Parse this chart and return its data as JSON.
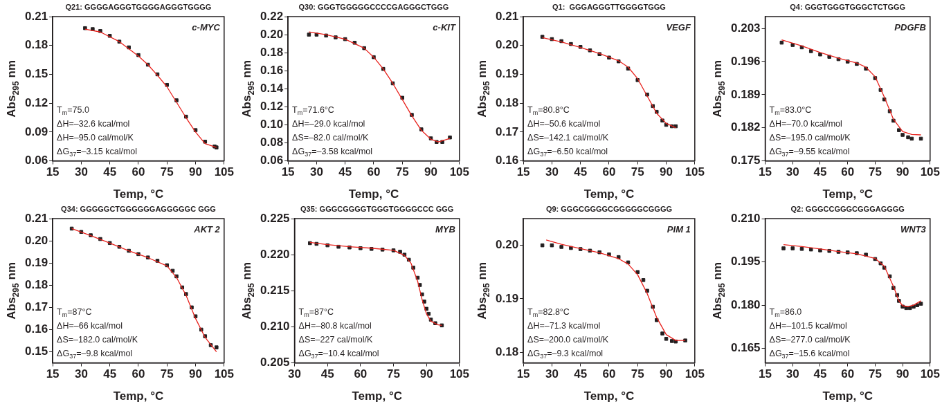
{
  "chart_data": [
    {
      "type": "scatter",
      "title": "Q21: GGGGAGGGTGGGGAGGGTGGGG",
      "xlabel": "Temp, °C",
      "ylabel": "Abs$_{295}$ nm",
      "xlim": [
        15,
        105
      ],
      "xticks": [
        15,
        30,
        45,
        60,
        75,
        90,
        105
      ],
      "ylim": [
        0.06,
        0.21
      ],
      "yticks": [
        {
          "value": 0.06,
          "label": "0.06"
        },
        {
          "value": 0.09,
          "label": "0.09"
        },
        {
          "value": 0.12,
          "label": "0.12"
        },
        {
          "value": 0.15,
          "label": "0.15"
        },
        {
          "value": 0.18,
          "label": "0.18"
        },
        {
          "value": 0.21,
          "label": "0.21"
        }
      ],
      "annotations": [
        "c-MYC",
        "T$_{m}$=75.0",
        "ΔH=–32.6 kcal/mol",
        "ΔH=–95.0 cal/mol/K",
        "ΔG$_{37}$=–3.15 kcal/mol"
      ],
      "series": [
        {
          "type": "scatter",
          "marker": "square",
          "color": "#231f20",
          "x": [
            32,
            36,
            40,
            45,
            50,
            55,
            60,
            65,
            70,
            75,
            80,
            85,
            90,
            95,
            100,
            101
          ],
          "values": [
            0.198,
            0.197,
            0.195,
            0.19,
            0.184,
            0.178,
            0.17,
            0.16,
            0.15,
            0.139,
            0.123,
            0.106,
            0.092,
            0.08,
            0.075,
            0.074
          ]
        },
        {
          "type": "line",
          "marker": "none",
          "line_style": "solid",
          "color": "#e8211c",
          "x": [
            32,
            40,
            50,
            60,
            65,
            70,
            75,
            80,
            85,
            90,
            95,
            101
          ],
          "values": [
            0.197,
            0.194,
            0.184,
            0.169,
            0.16,
            0.149,
            0.137,
            0.121,
            0.105,
            0.09,
            0.078,
            0.074
          ]
        }
      ]
    },
    {
      "type": "scatter",
      "title": "Q30: GGGTGGGGGCCCCGAGGGCTGGG",
      "xlabel": "Temp, °C",
      "ylabel": "Abs$_{295}$ nm",
      "xlim": [
        15,
        105
      ],
      "xticks": [
        15,
        30,
        45,
        60,
        75,
        90,
        105
      ],
      "ylim": [
        0.06,
        0.22
      ],
      "yticks": [
        {
          "value": 0.06,
          "label": "0.06"
        },
        {
          "value": 0.08,
          "label": "0.08"
        },
        {
          "value": 0.1,
          "label": "0.10"
        },
        {
          "value": 0.12,
          "label": "0.12"
        },
        {
          "value": 0.14,
          "label": "0.14"
        },
        {
          "value": 0.16,
          "label": "0.16"
        },
        {
          "value": 0.18,
          "label": "0.18"
        },
        {
          "value": 0.2,
          "label": "0.20"
        },
        {
          "value": 0.22,
          "label": "0.22"
        }
      ],
      "annotations": [
        "c-KIT",
        "T$_{m}$=71.6°C",
        "ΔH=–29.0 kcal/mol",
        "ΔS=–82.0 cal/mol/K",
        "ΔG$_{37}$=–3.58 kcal/mol"
      ],
      "series": [
        {
          "type": "scatter",
          "marker": "square",
          "color": "#231f20",
          "x": [
            26,
            30,
            35,
            40,
            45,
            50,
            55,
            60,
            65,
            70,
            75,
            80,
            85,
            90,
            93,
            96,
            100
          ],
          "values": [
            0.2,
            0.2,
            0.199,
            0.197,
            0.195,
            0.191,
            0.185,
            0.175,
            0.162,
            0.146,
            0.13,
            0.111,
            0.095,
            0.085,
            0.081,
            0.081,
            0.086
          ]
        },
        {
          "type": "line",
          "marker": "none",
          "line_style": "solid",
          "color": "#e8211c",
          "x": [
            26,
            35,
            45,
            55,
            60,
            65,
            70,
            75,
            80,
            85,
            90,
            94,
            100
          ],
          "values": [
            0.203,
            0.2,
            0.195,
            0.185,
            0.175,
            0.162,
            0.146,
            0.128,
            0.11,
            0.094,
            0.084,
            0.081,
            0.085
          ]
        }
      ]
    },
    {
      "type": "scatter",
      "title": "Q1:  GGGAGGGTTGGGGTGGG",
      "xlabel": "Temp, °C",
      "ylabel": "Abs$_{295}$ nm",
      "xlim": [
        15,
        105
      ],
      "xticks": [
        15,
        30,
        45,
        60,
        75,
        90,
        105
      ],
      "ylim": [
        0.16,
        0.21
      ],
      "yticks": [
        {
          "value": 0.16,
          "label": "0.16"
        },
        {
          "value": 0.17,
          "label": "0.17"
        },
        {
          "value": 0.18,
          "label": "0.18"
        },
        {
          "value": 0.19,
          "label": "0.19"
        },
        {
          "value": 0.2,
          "label": "0.20"
        },
        {
          "value": 0.21,
          "label": "0.21"
        }
      ],
      "annotations": [
        "VEGF",
        "T$_{m}$=80.8°C",
        "ΔH=–50.6 kcal/mol",
        "ΔS=–142.1 cal/mol/K",
        "ΔG$_{37}$=–6.50 kcal/mol"
      ],
      "series": [
        {
          "type": "scatter",
          "marker": "square",
          "color": "#231f20",
          "x": [
            25,
            30,
            35,
            40,
            45,
            50,
            55,
            60,
            65,
            70,
            75,
            80,
            83,
            85,
            88,
            90,
            93,
            95
          ],
          "values": [
            0.203,
            0.2022,
            0.2015,
            0.2005,
            0.1995,
            0.1983,
            0.197,
            0.1958,
            0.1945,
            0.192,
            0.188,
            0.183,
            0.179,
            0.177,
            0.174,
            0.1725,
            0.172,
            0.172
          ]
        },
        {
          "type": "line",
          "marker": "none",
          "line_style": "solid",
          "color": "#e8211c",
          "x": [
            25,
            35,
            45,
            55,
            65,
            70,
            75,
            80,
            85,
            90,
            95
          ],
          "values": [
            0.2027,
            0.2012,
            0.1993,
            0.1972,
            0.1947,
            0.1925,
            0.1885,
            0.1825,
            0.1765,
            0.173,
            0.1715
          ]
        }
      ]
    },
    {
      "type": "scatter",
      "title": "Q4: GGGTGGGTGGGCTCTGGG",
      "xlabel": "Temp, °C",
      "ylabel": "Abs$_{295}$ nm",
      "xlim": [
        15,
        105
      ],
      "xticks": [
        15,
        30,
        45,
        60,
        75,
        90,
        105
      ],
      "ylim": [
        0.175,
        0.2055
      ],
      "yticks": [
        0.175,
        0.182,
        0.189,
        0.196,
        0.203
      ],
      "annotations": [
        "PDGFB",
        "T$_{m}$=83.0°C",
        "ΔH=–70.0 kcal/mol",
        "ΔS=–195.0 cal/mol/K",
        "ΔG$_{37}$=–9.55 kcal/mol"
      ],
      "series": [
        {
          "type": "scatter",
          "marker": "square",
          "color": "#231f20",
          "x": [
            24,
            30,
            35,
            40,
            45,
            50,
            55,
            60,
            65,
            70,
            75,
            78,
            80,
            83,
            85,
            88,
            90,
            93,
            95,
            100
          ],
          "values": [
            0.2,
            0.1995,
            0.199,
            0.1982,
            0.1975,
            0.197,
            0.1965,
            0.196,
            0.1955,
            0.1945,
            0.1925,
            0.19,
            0.188,
            0.1855,
            0.1835,
            0.1815,
            0.1805,
            0.18,
            0.1797,
            0.1797
          ]
        },
        {
          "type": "line",
          "marker": "none",
          "line_style": "solid",
          "color": "#e8211c",
          "x": [
            24,
            35,
            45,
            55,
            65,
            70,
            75,
            80,
            85,
            90,
            95,
            100
          ],
          "values": [
            0.2006,
            0.1993,
            0.1979,
            0.1967,
            0.1957,
            0.1948,
            0.1928,
            0.1885,
            0.1838,
            0.1812,
            0.1806,
            0.1805
          ]
        }
      ]
    },
    {
      "type": "scatter",
      "title": "Q34: GGGGGCTGGGGGGAGGGGGC GGG",
      "xlabel": "Temp, °C",
      "ylabel": "Abs$_{295}$ nm",
      "xlim": [
        15,
        105
      ],
      "xticks": [
        15,
        30,
        45,
        60,
        75,
        90,
        105
      ],
      "ylim": [
        0.145,
        0.21
      ],
      "yticks": [
        0.15,
        0.16,
        0.17,
        0.18,
        0.19,
        {
          "value": 0.2,
          "label": "0.20"
        },
        0.21
      ],
      "annotations": [
        "AKT 2",
        "T$_{m}$=87°C",
        "ΔH=–66 kcal/mol",
        "ΔS=–182.0 cal/mol/K",
        "ΔG$_{37}$=–9.8 kcal/mol"
      ],
      "series": [
        {
          "type": "scatter",
          "marker": "square",
          "color": "#231f20",
          "x": [
            25,
            30,
            35,
            40,
            45,
            50,
            55,
            60,
            65,
            70,
            75,
            78,
            80,
            83,
            85,
            88,
            90,
            93,
            95,
            98,
            101
          ],
          "values": [
            0.2055,
            0.204,
            0.2025,
            0.2008,
            0.199,
            0.1973,
            0.1955,
            0.194,
            0.1925,
            0.191,
            0.189,
            0.1865,
            0.184,
            0.179,
            0.176,
            0.17,
            0.166,
            0.16,
            0.157,
            0.153,
            0.152
          ]
        },
        {
          "type": "line",
          "marker": "none",
          "line_style": "solid",
          "color": "#e8211c",
          "x": [
            25,
            35,
            45,
            55,
            65,
            75,
            80,
            85,
            90,
            95,
            101
          ],
          "values": [
            0.2055,
            0.2023,
            0.199,
            0.1955,
            0.1924,
            0.1887,
            0.1835,
            0.1755,
            0.165,
            0.1565,
            0.15
          ]
        }
      ]
    },
    {
      "type": "scatter",
      "title": "Q35: GGGCGGGGTGGGTGGGGCCC GGG",
      "xlabel": "Temp, °C",
      "ylabel": "Abs$_{295}$ nm",
      "xlim": [
        30,
        105
      ],
      "xticks": [
        30,
        45,
        60,
        75,
        90,
        105
      ],
      "ylim": [
        0.205,
        0.225
      ],
      "yticks": [
        0.205,
        {
          "value": 0.21,
          "label": "0.210"
        },
        0.215,
        {
          "value": 0.22,
          "label": "0.220"
        },
        0.225
      ],
      "annotations": [
        "MYB",
        "T$_{m}$=87°C",
        "ΔH=–80.8 kcal/mol",
        "ΔS=–227 cal/mol/K",
        "ΔG$_{37}$=–10.4 kcal/mol"
      ],
      "series": [
        {
          "type": "scatter",
          "marker": "square",
          "color": "#231f20",
          "x": [
            37,
            40,
            45,
            50,
            55,
            60,
            65,
            70,
            75,
            78,
            80,
            82,
            84,
            86,
            87,
            88,
            89,
            90,
            91,
            92,
            94,
            97
          ],
          "values": [
            0.2216,
            0.2215,
            0.2213,
            0.2211,
            0.221,
            0.2209,
            0.2208,
            0.2207,
            0.2206,
            0.2204,
            0.22,
            0.2193,
            0.2182,
            0.2168,
            0.2158,
            0.2145,
            0.2135,
            0.2125,
            0.2118,
            0.211,
            0.2105,
            0.2102
          ]
        },
        {
          "type": "line",
          "marker": "none",
          "line_style": "solid",
          "color": "#e8211c",
          "x": [
            37,
            45,
            55,
            65,
            75,
            80,
            83,
            86,
            88,
            90,
            92,
            95,
            97
          ],
          "values": [
            0.2217,
            0.2214,
            0.2211,
            0.2209,
            0.2206,
            0.2199,
            0.2188,
            0.2163,
            0.2138,
            0.2118,
            0.2108,
            0.2103,
            0.2102
          ]
        }
      ]
    },
    {
      "type": "scatter",
      "title": "Q9: GGGCGGGGCGGGGGCGGGG",
      "xlabel": "Temp, °C",
      "ylabel": "Abs$_{295}$ nm",
      "xlim": [
        15,
        105
      ],
      "xticks": [
        15,
        30,
        45,
        60,
        75,
        90,
        105
      ],
      "ylim": [
        0.178,
        0.205
      ],
      "yticks": [
        {
          "value": 0.18,
          "label": "0.18"
        },
        {
          "value": 0.19,
          "label": "0.19"
        },
        {
          "value": 0.2,
          "label": "0.20"
        }
      ],
      "annotations": [
        "PIM 1",
        "T$_{m}$=82.8°C",
        "ΔH=–71.3 kcal/mol",
        "ΔS=–200.0 cal/mol/K",
        "ΔG$_{37}$=–9.3 kcal/mol"
      ],
      "series": [
        {
          "type": "scatter",
          "marker": "square",
          "color": "#231f20",
          "x": [
            25,
            30,
            35,
            40,
            45,
            50,
            55,
            60,
            65,
            70,
            75,
            78,
            80,
            83,
            85,
            88,
            90,
            93,
            95,
            100
          ],
          "values": [
            0.2,
            0.2,
            0.1997,
            0.1995,
            0.1993,
            0.199,
            0.1987,
            0.1983,
            0.1978,
            0.1968,
            0.195,
            0.1935,
            0.1915,
            0.1885,
            0.186,
            0.1835,
            0.1825,
            0.1821,
            0.182,
            0.1822
          ]
        },
        {
          "type": "line",
          "marker": "none",
          "line_style": "solid",
          "color": "#e8211c",
          "x": [
            27,
            35,
            45,
            55,
            65,
            70,
            75,
            80,
            85,
            90,
            95,
            100
          ],
          "values": [
            0.201,
            0.2002,
            0.1994,
            0.1986,
            0.1975,
            0.1965,
            0.1945,
            0.191,
            0.1865,
            0.1833,
            0.1822,
            0.1822
          ]
        }
      ]
    },
    {
      "type": "scatter",
      "title": "Q2: GGGCCGGGCGGGAGGGG",
      "xlabel": "Temp, °C",
      "ylabel": "Abs$_{295}$ nm",
      "xlim": [
        15,
        105
      ],
      "xticks": [
        15,
        30,
        45,
        60,
        75,
        90,
        105
      ],
      "ylim": [
        0.16,
        0.21
      ],
      "yticks": [
        0.165,
        {
          "value": 0.18,
          "label": "0.180"
        },
        0.195,
        {
          "value": 0.21,
          "label": "0.210"
        }
      ],
      "annotations": [
        "WNT3",
        "T$_{m}$=86.0",
        "ΔH=–101.5 kcal/mol",
        "ΔS=–277.0 cal/mol/K",
        "ΔG$_{37}$=–15.6 kcal/mol"
      ],
      "series": [
        {
          "type": "scatter",
          "marker": "square",
          "color": "#231f20",
          "x": [
            25,
            30,
            35,
            40,
            45,
            50,
            55,
            60,
            65,
            70,
            75,
            78,
            80,
            83,
            85,
            87,
            88,
            90,
            92,
            94,
            96,
            98,
            100
          ],
          "values": [
            0.1997,
            0.1997,
            0.1995,
            0.1993,
            0.199,
            0.1988,
            0.1985,
            0.1983,
            0.198,
            0.1975,
            0.196,
            0.1945,
            0.193,
            0.19,
            0.186,
            0.1835,
            0.1815,
            0.1795,
            0.179,
            0.179,
            0.1795,
            0.18,
            0.1805
          ]
        },
        {
          "type": "line",
          "marker": "none",
          "line_style": "solid",
          "color": "#e8211c",
          "x": [
            25,
            35,
            45,
            55,
            65,
            75,
            80,
            85,
            88,
            90,
            93,
            96,
            100
          ],
          "values": [
            0.201,
            0.2003,
            0.1995,
            0.1986,
            0.1978,
            0.1962,
            0.1935,
            0.1865,
            0.1815,
            0.1798,
            0.1795,
            0.18,
            0.1815
          ]
        }
      ]
    }
  ]
}
